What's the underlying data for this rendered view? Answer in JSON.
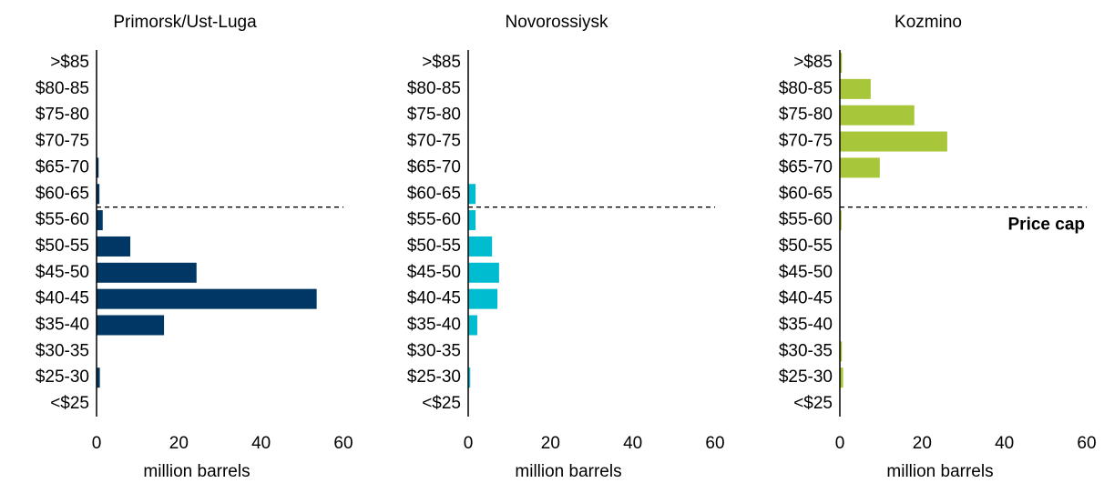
{
  "chart_data": [
    {
      "type": "bar",
      "orientation": "horizontal",
      "title": "Primorsk/Ust-Luga",
      "categories": [
        ">$85",
        "$80-85",
        "$75-80",
        "$70-75",
        "$65-70",
        "$60-65",
        "$55-60",
        "$50-55",
        "$45-50",
        "$40-45",
        "$35-40",
        "$30-35",
        "$25-30",
        "<$25"
      ],
      "values": [
        0,
        0,
        0,
        0,
        0.5,
        0.7,
        1.5,
        8.2,
        24.3,
        53.5,
        16.4,
        0,
        0.8,
        0
      ],
      "color": "#003764",
      "xlim": [
        0,
        60
      ],
      "xticks": [
        0,
        20,
        40,
        60
      ],
      "xlabel": "million barrels"
    },
    {
      "type": "bar",
      "orientation": "horizontal",
      "title": "Novorossiysk",
      "categories": [
        ">$85",
        "$80-85",
        "$75-80",
        "$70-75",
        "$65-70",
        "$60-65",
        "$55-60",
        "$50-55",
        "$45-50",
        "$40-45",
        "$35-40",
        "$30-35",
        "$25-30",
        "<$25"
      ],
      "values": [
        0,
        0,
        0,
        0,
        0,
        1.8,
        1.8,
        5.8,
        7.5,
        7.1,
        2.2,
        0,
        0.5,
        0
      ],
      "color": "#00bcd0",
      "xlim": [
        0,
        60
      ],
      "xticks": [
        0,
        20,
        40,
        60
      ],
      "xlabel": "million barrels"
    },
    {
      "type": "bar",
      "orientation": "horizontal",
      "title": "Kozmino",
      "categories": [
        ">$85",
        "$80-85",
        "$75-80",
        "$70-75",
        "$65-70",
        "$60-65",
        "$55-60",
        "$50-55",
        "$45-50",
        "$40-45",
        "$35-40",
        "$30-35",
        "$25-30",
        "<$25"
      ],
      "values": [
        0.5,
        7.5,
        18.1,
        26.1,
        9.7,
        0,
        0.4,
        0,
        0,
        0,
        0,
        0.5,
        0.8,
        0
      ],
      "color": "#a8c63a",
      "xlim": [
        0,
        60
      ],
      "xticks": [
        0,
        20,
        40,
        60
      ],
      "xlabel": "million barrels",
      "annotation": "Price cap"
    }
  ]
}
